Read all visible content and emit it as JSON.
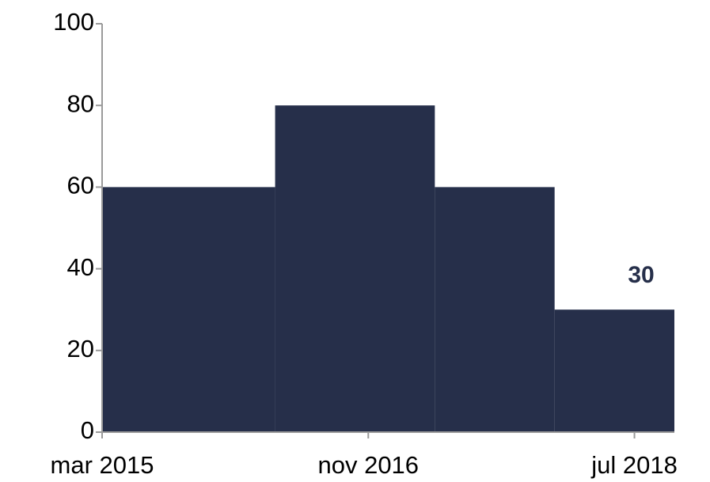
{
  "chart_data": {
    "type": "step-area",
    "color": "#262f4a",
    "x": [
      "2015-03",
      "2016-04",
      "2017-04",
      "2018-01"
    ],
    "values": [
      60,
      80,
      60,
      30
    ],
    "value_labels": [
      null,
      null,
      null,
      "30"
    ],
    "xlim": [
      "2015-03",
      "2018-10"
    ],
    "xticks": [
      {
        "value": "2015-03",
        "label": "mar 2015"
      },
      {
        "value": "2016-11",
        "label": "nov 2016"
      },
      {
        "value": "2018-07",
        "label": "jul 2018"
      }
    ],
    "ylim": [
      0,
      100
    ],
    "yticks": [
      0,
      20,
      40,
      60,
      80,
      100
    ],
    "grid": false
  }
}
